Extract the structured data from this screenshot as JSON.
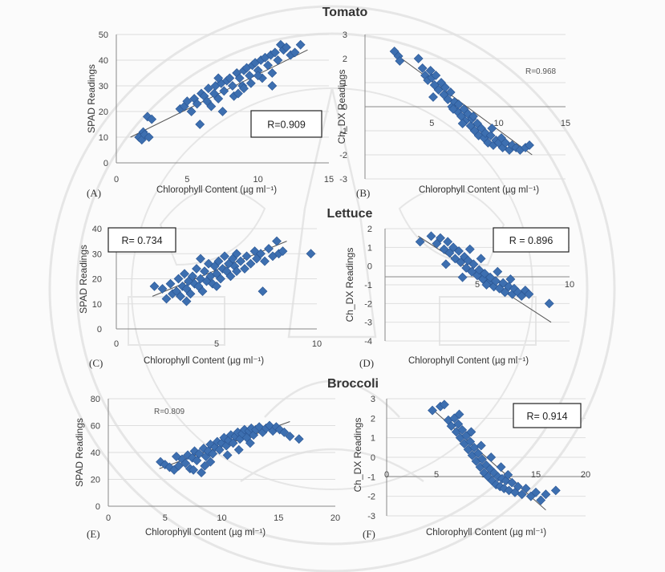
{
  "headings": {
    "tomato": "Tomato",
    "lettuce": "Lettuce",
    "broccoli": "Broccoli"
  },
  "colors": {
    "marker": "#3d6fb0",
    "marker_stroke": "#2a5592",
    "trend": "#555555",
    "gridline": "#dedede"
  },
  "chart_data": [
    {
      "type": "scatter",
      "panel": "(A)",
      "crop": "Tomato",
      "xlabel": "Chlorophyll Content (µg ml⁻¹)",
      "ylabel": "SPAD Readings",
      "xlim": [
        0,
        15
      ],
      "ylim": [
        0,
        50
      ],
      "xticks": [
        "0",
        "5",
        "10",
        "15"
      ],
      "yticks": [
        "0",
        "10",
        "20",
        "30",
        "40",
        "50"
      ],
      "r_label": "R=0.909",
      "r_style": "boxed",
      "r_position": "lower-right",
      "trendline": [
        [
          1.0,
          10.0
        ],
        [
          13.5,
          44.0
        ]
      ],
      "points": [
        [
          1.6,
          10
        ],
        [
          1.8,
          9
        ],
        [
          1.9,
          12
        ],
        [
          2.0,
          11
        ],
        [
          2.2,
          18
        ],
        [
          2.3,
          10
        ],
        [
          2.5,
          17
        ],
        [
          4.5,
          21
        ],
        [
          4.8,
          22
        ],
        [
          5,
          24
        ],
        [
          5.3,
          20
        ],
        [
          5.5,
          25
        ],
        [
          5.7,
          23
        ],
        [
          5.9,
          15
        ],
        [
          6,
          27
        ],
        [
          6.2,
          26
        ],
        [
          6.4,
          24
        ],
        [
          6.5,
          29
        ],
        [
          6.7,
          22
        ],
        [
          6.9,
          27
        ],
        [
          7,
          30
        ],
        [
          7.2,
          25
        ],
        [
          7.4,
          31
        ],
        [
          7.5,
          20
        ],
        [
          7.6,
          28
        ],
        [
          7.8,
          32
        ],
        [
          8,
          33
        ],
        [
          8.2,
          30
        ],
        [
          8.3,
          26
        ],
        [
          8.5,
          35
        ],
        [
          8.7,
          33
        ],
        [
          8.9,
          30
        ],
        [
          9,
          36
        ],
        [
          9.2,
          37
        ],
        [
          9.4,
          34
        ],
        [
          9.5,
          31
        ],
        [
          9.6,
          38
        ],
        [
          9.8,
          39
        ],
        [
          10,
          36
        ],
        [
          10.2,
          40
        ],
        [
          10.3,
          33
        ],
        [
          10.5,
          41
        ],
        [
          10.7,
          38
        ],
        [
          10.9,
          42
        ],
        [
          11,
          35
        ],
        [
          11.2,
          43
        ],
        [
          11.4,
          40
        ],
        [
          11.6,
          46
        ],
        [
          11.8,
          44
        ],
        [
          12,
          45
        ],
        [
          12.3,
          42
        ],
        [
          12.6,
          43
        ],
        [
          13,
          46
        ],
        [
          11,
          30
        ],
        [
          10,
          34
        ],
        [
          9,
          29
        ],
        [
          8.6,
          27
        ],
        [
          7.2,
          33
        ]
      ]
    },
    {
      "type": "scatter",
      "panel": "(B)",
      "crop": "Tomato",
      "xlabel": "Chlorophyll Content (µg ml⁻¹)",
      "ylabel": "Ch_DX Readings",
      "xlim": [
        0,
        15
      ],
      "ylim": [
        -3,
        3
      ],
      "xticks": [
        "5",
        "10",
        "15"
      ],
      "yticks": [
        "-3",
        "-2",
        "-1",
        "0",
        "1",
        "2",
        "3"
      ],
      "r_label": "R=0.968",
      "r_style": "plain",
      "r_position": "top-right",
      "trendline": [
        [
          2.0,
          2.3
        ],
        [
          12.5,
          -2.0
        ]
      ],
      "points": [
        [
          2.2,
          2.3
        ],
        [
          2.5,
          2.1
        ],
        [
          2.6,
          1.9
        ],
        [
          4.0,
          2.0
        ],
        [
          4.3,
          1.6
        ],
        [
          4.5,
          1.3
        ],
        [
          4.7,
          1.1
        ],
        [
          5,
          1.2
        ],
        [
          5.2,
          0.9
        ],
        [
          5.3,
          1.3
        ],
        [
          5.5,
          0.7
        ],
        [
          5.7,
          1.0
        ],
        [
          5.9,
          0.5
        ],
        [
          6,
          0.8
        ],
        [
          6.2,
          0.3
        ],
        [
          6.4,
          0.6
        ],
        [
          6.5,
          0.0
        ],
        [
          6.7,
          0.2
        ],
        [
          6.9,
          -0.2
        ],
        [
          7,
          0.1
        ],
        [
          7.2,
          -0.4
        ],
        [
          7.4,
          -0.1
        ],
        [
          7.5,
          -0.6
        ],
        [
          7.7,
          -0.3
        ],
        [
          7.9,
          -0.8
        ],
        [
          8,
          -0.5
        ],
        [
          8.2,
          -1.0
        ],
        [
          8.4,
          -0.7
        ],
        [
          8.5,
          -1.2
        ],
        [
          8.7,
          -0.9
        ],
        [
          8.9,
          -1.3
        ],
        [
          9,
          -1.1
        ],
        [
          9.2,
          -1.5
        ],
        [
          9.4,
          -1.2
        ],
        [
          9.6,
          -1.6
        ],
        [
          9.8,
          -1.4
        ],
        [
          10,
          -1.5
        ],
        [
          10.3,
          -1.7
        ],
        [
          10.5,
          -1.5
        ],
        [
          10.8,
          -1.8
        ],
        [
          11,
          -1.6
        ],
        [
          11.3,
          -1.7
        ],
        [
          11.6,
          -1.8
        ],
        [
          12,
          -1.7
        ],
        [
          12.3,
          -1.6
        ],
        [
          5.1,
          0.4
        ],
        [
          6.6,
          -0.1
        ],
        [
          7.3,
          -0.7
        ],
        [
          8.1,
          -0.4
        ],
        [
          9.5,
          -0.9
        ],
        [
          10.2,
          -1.3
        ],
        [
          4.9,
          1.5
        ]
      ]
    },
    {
      "type": "scatter",
      "panel": "(C)",
      "crop": "Lettuce",
      "xlabel": "Chlorophyll Content (µg ml⁻¹)",
      "ylabel": "SPAD Readings",
      "xlim": [
        0,
        10
      ],
      "ylim": [
        0,
        40
      ],
      "xticks": [
        "0",
        "5",
        "10"
      ],
      "yticks": [
        "0",
        "10",
        "20",
        "30",
        "40"
      ],
      "r_label": "R= 0.734",
      "r_style": "boxed",
      "r_position": "top-left",
      "trendline": [
        [
          1.8,
          13.0
        ],
        [
          8.5,
          35.0
        ]
      ],
      "points": [
        [
          1.9,
          17
        ],
        [
          2.3,
          16
        ],
        [
          2.5,
          12
        ],
        [
          2.7,
          18
        ],
        [
          2.8,
          14
        ],
        [
          3,
          15
        ],
        [
          3.1,
          20
        ],
        [
          3.2,
          13
        ],
        [
          3.3,
          17
        ],
        [
          3.4,
          22
        ],
        [
          3.5,
          16
        ],
        [
          3.6,
          19
        ],
        [
          3.7,
          14
        ],
        [
          3.8,
          21
        ],
        [
          3.9,
          18
        ],
        [
          4,
          24
        ],
        [
          4.1,
          17
        ],
        [
          4.2,
          20
        ],
        [
          4.3,
          15
        ],
        [
          4.4,
          23
        ],
        [
          4.5,
          19
        ],
        [
          4.6,
          26
        ],
        [
          4.7,
          21
        ],
        [
          4.8,
          18
        ],
        [
          4.9,
          25
        ],
        [
          5,
          22
        ],
        [
          5.1,
          27
        ],
        [
          5.2,
          20
        ],
        [
          5.3,
          24
        ],
        [
          5.4,
          29
        ],
        [
          5.5,
          23
        ],
        [
          5.6,
          26
        ],
        [
          5.7,
          21
        ],
        [
          5.8,
          28
        ],
        [
          5.9,
          25
        ],
        [
          6,
          30
        ],
        [
          6.2,
          27
        ],
        [
          6.4,
          24
        ],
        [
          6.5,
          29
        ],
        [
          6.7,
          26
        ],
        [
          6.9,
          31
        ],
        [
          7,
          28
        ],
        [
          7.2,
          30
        ],
        [
          7.4,
          27
        ],
        [
          7.6,
          32
        ],
        [
          7.8,
          29
        ],
        [
          8,
          35
        ],
        [
          8.1,
          30
        ],
        [
          8.3,
          31
        ],
        [
          7.3,
          15
        ],
        [
          9.7,
          30
        ],
        [
          3.5,
          11
        ],
        [
          4.2,
          28
        ],
        [
          5,
          17
        ],
        [
          6,
          23
        ]
      ]
    },
    {
      "type": "scatter",
      "panel": "(D)",
      "crop": "Lettuce",
      "xlabel": "Chlorophyll Content (µg ml⁻¹)",
      "ylabel": "Ch_DX Readings",
      "xlim": [
        0,
        10
      ],
      "ylim": [
        -4,
        2
      ],
      "xticks": [
        "5",
        "10"
      ],
      "yticks": [
        "-4",
        "-3",
        "-2",
        "-1",
        "0",
        "1",
        "2"
      ],
      "r_label": "R = 0.896",
      "r_style": "boxed",
      "r_position": "top-right",
      "trendline": [
        [
          1.8,
          1.6
        ],
        [
          9.0,
          -3.0
        ]
      ],
      "points": [
        [
          1.9,
          1.3
        ],
        [
          2.5,
          1.6
        ],
        [
          2.8,
          1.2
        ],
        [
          3,
          1.5
        ],
        [
          3.2,
          0.9
        ],
        [
          3.4,
          1.3
        ],
        [
          3.5,
          0.7
        ],
        [
          3.7,
          1.0
        ],
        [
          3.8,
          0.4
        ],
        [
          4,
          0.8
        ],
        [
          4.1,
          0.2
        ],
        [
          4.3,
          0.5
        ],
        [
          4.4,
          -0.1
        ],
        [
          4.5,
          0.3
        ],
        [
          4.7,
          -0.3
        ],
        [
          4.8,
          0.1
        ],
        [
          5,
          -0.5
        ],
        [
          5.1,
          -0.2
        ],
        [
          5.3,
          -0.7
        ],
        [
          5.4,
          -0.4
        ],
        [
          5.6,
          -0.9
        ],
        [
          5.7,
          -0.6
        ],
        [
          5.9,
          -1.1
        ],
        [
          6,
          -0.8
        ],
        [
          6.2,
          -1.2
        ],
        [
          6.4,
          -0.9
        ],
        [
          6.5,
          -1.4
        ],
        [
          6.7,
          -1.1
        ],
        [
          6.9,
          -1.5
        ],
        [
          7,
          -1.2
        ],
        [
          7.2,
          -1.4
        ],
        [
          7.4,
          -1.6
        ],
        [
          7.6,
          -1.3
        ],
        [
          7.8,
          -1.5
        ],
        [
          3.3,
          0.1
        ],
        [
          4.2,
          -0.6
        ],
        [
          5.5,
          -1.0
        ],
        [
          6.1,
          -0.3
        ],
        [
          4.6,
          0.9
        ],
        [
          8.9,
          -2.0
        ],
        [
          5.2,
          0.4
        ],
        [
          6.8,
          -0.7
        ]
      ]
    },
    {
      "type": "scatter",
      "panel": "(E)",
      "crop": "Broccoli",
      "xlabel": "Chlorophyll Content (µg ml⁻¹)",
      "ylabel": "SPAD Readings",
      "xlim": [
        0,
        20
      ],
      "ylim": [
        0,
        80
      ],
      "xticks": [
        "0",
        "5",
        "10",
        "15",
        "20"
      ],
      "yticks": [
        "0",
        "20",
        "40",
        "60",
        "80"
      ],
      "r_label": "R=0.809",
      "r_style": "plain",
      "r_position": "top-left",
      "trendline": [
        [
          4.5,
          28.0
        ],
        [
          16.0,
          63.0
        ]
      ],
      "points": [
        [
          4.6,
          33
        ],
        [
          5,
          31
        ],
        [
          5.4,
          29
        ],
        [
          5.8,
          27
        ],
        [
          6.2,
          30
        ],
        [
          6.5,
          35
        ],
        [
          6.8,
          32
        ],
        [
          7,
          38
        ],
        [
          7.2,
          28
        ],
        [
          7.4,
          36
        ],
        [
          7.6,
          41
        ],
        [
          7.8,
          34
        ],
        [
          8,
          39
        ],
        [
          8.2,
          25
        ],
        [
          8.4,
          43
        ],
        [
          8.6,
          37
        ],
        [
          8.8,
          41
        ],
        [
          9,
          46
        ],
        [
          9.2,
          39
        ],
        [
          9.4,
          44
        ],
        [
          9.6,
          48
        ],
        [
          9.8,
          42
        ],
        [
          10,
          47
        ],
        [
          10.2,
          51
        ],
        [
          10.4,
          45
        ],
        [
          10.6,
          49
        ],
        [
          10.8,
          53
        ],
        [
          11,
          47
        ],
        [
          11.2,
          52
        ],
        [
          11.4,
          55
        ],
        [
          11.6,
          50
        ],
        [
          11.8,
          54
        ],
        [
          12,
          57
        ],
        [
          12.2,
          51
        ],
        [
          12.4,
          56
        ],
        [
          12.6,
          58
        ],
        [
          12.8,
          53
        ],
        [
          13,
          57
        ],
        [
          13.3,
          59
        ],
        [
          13.6,
          55
        ],
        [
          13.9,
          58
        ],
        [
          14.2,
          60
        ],
        [
          14.5,
          56
        ],
        [
          14.8,
          59
        ],
        [
          15.1,
          57
        ],
        [
          15.5,
          55
        ],
        [
          16,
          52
        ],
        [
          16.8,
          50
        ],
        [
          7.5,
          27
        ],
        [
          9,
          33
        ],
        [
          10.5,
          38
        ],
        [
          11.5,
          42
        ],
        [
          12.5,
          47
        ],
        [
          6,
          37
        ],
        [
          8.5,
          30
        ]
      ]
    },
    {
      "type": "scatter",
      "panel": "(F)",
      "crop": "Broccoli",
      "xlabel": "Chlorophyll Content (µg ml⁻¹)",
      "ylabel": "Ch_DX Readings",
      "xlim": [
        0,
        20
      ],
      "ylim": [
        -3,
        3
      ],
      "xticks": [
        "0",
        "5",
        "10",
        "15",
        "20"
      ],
      "yticks": [
        "-3",
        "-2",
        "-1",
        "0",
        "1",
        "2",
        "3"
      ],
      "r_label": "R= 0.914",
      "r_style": "boxed",
      "r_position": "top-right",
      "trendline": [
        [
          4.5,
          2.5
        ],
        [
          16.0,
          -2.7
        ]
      ],
      "points": [
        [
          4.6,
          2.4
        ],
        [
          5.4,
          2.6
        ],
        [
          5.8,
          2.7
        ],
        [
          6.2,
          1.9
        ],
        [
          6.5,
          1.6
        ],
        [
          6.8,
          2.0
        ],
        [
          7,
          1.3
        ],
        [
          7.2,
          1.7
        ],
        [
          7.4,
          1.0
        ],
        [
          7.6,
          1.4
        ],
        [
          7.8,
          0.7
        ],
        [
          8,
          1.1
        ],
        [
          8.2,
          0.4
        ],
        [
          8.4,
          0.8
        ],
        [
          8.6,
          0.1
        ],
        [
          8.8,
          0.5
        ],
        [
          9,
          -0.2
        ],
        [
          9.2,
          0.2
        ],
        [
          9.4,
          -0.5
        ],
        [
          9.6,
          -0.1
        ],
        [
          9.8,
          -0.8
        ],
        [
          10,
          -0.4
        ],
        [
          10.2,
          -1.0
        ],
        [
          10.4,
          -0.6
        ],
        [
          10.6,
          -1.2
        ],
        [
          10.8,
          -0.8
        ],
        [
          11,
          -1.4
        ],
        [
          11.2,
          -1.0
        ],
        [
          11.4,
          -1.5
        ],
        [
          11.6,
          -1.1
        ],
        [
          11.8,
          -1.6
        ],
        [
          12,
          -1.2
        ],
        [
          12.3,
          -1.7
        ],
        [
          12.6,
          -1.3
        ],
        [
          12.9,
          -1.8
        ],
        [
          13.2,
          -1.5
        ],
        [
          13.6,
          -1.9
        ],
        [
          14,
          -1.6
        ],
        [
          14.5,
          -2.0
        ],
        [
          15,
          -1.8
        ],
        [
          15.5,
          -2.2
        ],
        [
          16,
          -1.9
        ],
        [
          17,
          -1.7
        ],
        [
          8.5,
          1.3
        ],
        [
          9.5,
          0.6
        ],
        [
          10.5,
          0.0
        ],
        [
          11.5,
          -0.5
        ],
        [
          7.3,
          2.2
        ],
        [
          12.2,
          -0.9
        ]
      ]
    }
  ]
}
